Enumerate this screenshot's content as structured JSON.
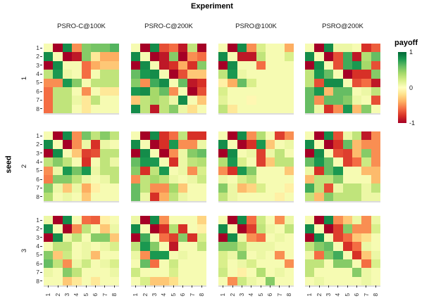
{
  "title": "Experiment",
  "legend": {
    "title": "payoff",
    "ticks": [
      "1",
      "0",
      "-1"
    ],
    "tick_values": [
      1,
      0,
      -1
    ]
  },
  "axes": {
    "x_tick_labels": [
      "1",
      "2",
      "3",
      "4",
      "5",
      "6",
      "7",
      "8"
    ],
    "y_tick_labels": [
      "1",
      "2",
      "3",
      "4",
      "5",
      "6",
      "7",
      "8"
    ],
    "row_axis_title": "seed"
  },
  "colors": {
    "background": "#ffffff",
    "scale_name": "RdYlGn",
    "scale_stops": [
      [
        -1.0,
        "#a50026"
      ],
      [
        -0.8,
        "#d73027"
      ],
      [
        -0.6,
        "#f46d43"
      ],
      [
        -0.4,
        "#fdae61"
      ],
      [
        -0.2,
        "#fee08b"
      ],
      [
        0.0,
        "#ffffbf"
      ],
      [
        0.2,
        "#d9ef8b"
      ],
      [
        0.4,
        "#a6d96a"
      ],
      [
        0.6,
        "#66bd63"
      ],
      [
        0.8,
        "#1a9850"
      ],
      [
        1.0,
        "#006837"
      ]
    ]
  },
  "chart_data": {
    "type": "heatmap",
    "title": "Experiment",
    "row_facet_label": "seed",
    "rows": [
      "1",
      "2",
      "3"
    ],
    "columns": [
      "PSRO-C@100K",
      "PSRO-C@200K",
      "PSRO@100K",
      "PSRO@200K"
    ],
    "x": [
      1,
      2,
      3,
      4,
      5,
      6,
      7,
      8
    ],
    "y": [
      1,
      2,
      3,
      4,
      5,
      6,
      7,
      8
    ],
    "value_label": "payoff",
    "value_range": [
      -1,
      1
    ],
    "legend_position": "right",
    "facets": [
      {
        "seed": "1",
        "experiment": "PSRO-C@100K",
        "values": [
          [
            0.05,
            -1,
            0.85,
            -0.5,
            0.5,
            0.55,
            0.55,
            0.65
          ],
          [
            0.85,
            0.05,
            -1,
            -0.9,
            0.5,
            -0.15,
            -0.4,
            -0.4
          ],
          [
            -1,
            0.85,
            0.05,
            0.05,
            -0.6,
            -0.4,
            -0.3,
            -0.3
          ],
          [
            0.3,
            0.8,
            0.1,
            0.05,
            -0.6,
            0.05,
            0.3,
            0.3
          ],
          [
            -0.5,
            -0.5,
            0.8,
            0.5,
            0.05,
            0.3,
            0.3,
            0.3
          ],
          [
            -0.6,
            0.3,
            0.3,
            0.05,
            -0.5,
            0.05,
            -0.15,
            -0.15
          ],
          [
            -0.6,
            0.3,
            0.3,
            0.1,
            -0.15,
            0.3,
            0.05,
            0.05
          ],
          [
            -0.6,
            0.3,
            0.3,
            0.05,
            -0.15,
            0.05,
            0.05,
            0.05
          ]
        ]
      },
      {
        "seed": "1",
        "experiment": "PSRO-C@200K",
        "values": [
          [
            0.05,
            -1,
            0.85,
            -0.7,
            -0.6,
            -0.9,
            0.3,
            -1
          ],
          [
            0.85,
            0.05,
            -1,
            -0.9,
            0.5,
            -1,
            -0.5,
            -0.6
          ],
          [
            -1,
            0.85,
            0.05,
            -0.9,
            -0.8,
            -0.4,
            -0.8,
            0.5
          ],
          [
            0.6,
            0.8,
            0.85,
            0.05,
            -1,
            -0.7,
            -0.3,
            -0.3
          ],
          [
            0.5,
            -0.5,
            0.7,
            0.85,
            0.05,
            0.6,
            -0.9,
            -0.8
          ],
          [
            0.8,
            0.85,
            0.4,
            0.6,
            -0.5,
            0.05,
            -1,
            -0.7
          ],
          [
            -0.3,
            0.3,
            0.4,
            0.3,
            0.1,
            0.85,
            0.05,
            -0.3
          ],
          [
            0.85,
            0.3,
            -0.9,
            0.3,
            0.5,
            0.1,
            -0.2,
            0.05
          ]
        ]
      },
      {
        "seed": "1",
        "experiment": "PSRO@100K",
        "values": [
          [
            0.05,
            -1,
            0.85,
            -0.5,
            0.2,
            0.05,
            0.05,
            -0.4
          ],
          [
            0.85,
            0.05,
            -0.9,
            -0.9,
            0.3,
            0.05,
            0.05,
            0.2
          ],
          [
            -1,
            0.85,
            0.05,
            0.05,
            -0.6,
            0.05,
            0.05,
            0.05
          ],
          [
            0.3,
            0.8,
            0.1,
            0.05,
            0.05,
            0.05,
            0.05,
            0.05
          ],
          [
            -0.1,
            -0.4,
            0.6,
            0.2,
            0.05,
            0.05,
            0.05,
            0.05
          ],
          [
            0.2,
            0.05,
            0.05,
            0.05,
            0.05,
            0.05,
            0.05,
            0.05
          ],
          [
            0.15,
            0.05,
            0.05,
            -0.05,
            0.05,
            0.05,
            0.05,
            0.05
          ],
          [
            0.3,
            -0.15,
            0.05,
            0.05,
            0.05,
            0.05,
            0.05,
            0.05
          ]
        ]
      },
      {
        "seed": "1",
        "experiment": "PSRO@200K",
        "values": [
          [
            0.05,
            -1,
            0.85,
            0.1,
            0.1,
            0.05,
            -0.8,
            -0.65
          ],
          [
            0.85,
            0.05,
            -1,
            -0.7,
            0.7,
            -0.9,
            0.35,
            0.6
          ],
          [
            -1,
            0.85,
            0.05,
            -0.7,
            0.7,
            0.8,
            0.4,
            -0.7
          ],
          [
            0.3,
            0.8,
            0.6,
            0.05,
            -1,
            -0.8,
            -0.8,
            0.5
          ],
          [
            0.3,
            -0.7,
            0.85,
            0.85,
            0.05,
            -0.7,
            -0.6,
            -0.9
          ],
          [
            0.6,
            0.8,
            -0.35,
            0.6,
            0.6,
            0.05,
            0.1,
            0.3
          ],
          [
            0.6,
            -0.5,
            0.6,
            0.6,
            0.5,
            0.1,
            0.05,
            -0.7
          ],
          [
            0.6,
            0.1,
            -0.8,
            -0.5,
            0.8,
            -0.35,
            0.5,
            0.05
          ]
        ]
      },
      {
        "seed": "2",
        "experiment": "PSRO-C@100K",
        "values": [
          [
            0.05,
            -1,
            0.85,
            -0.5,
            0.55,
            0.3,
            0.5,
            0.3
          ],
          [
            0.85,
            0.05,
            -1,
            -0.5,
            0.1,
            -0.8,
            0.1,
            0.05
          ],
          [
            -1,
            0.85,
            0.05,
            -0.3,
            -0.75,
            -0.7,
            0.3,
            0.3
          ],
          [
            0.3,
            0.5,
            0.3,
            0.05,
            -0.8,
            0.05,
            0.3,
            0.1
          ],
          [
            -0.5,
            0.1,
            0.8,
            0.55,
            0.8,
            0.1,
            0.3,
            0.3
          ],
          [
            -0.55,
            0.5,
            0.5,
            0.3,
            0.1,
            0.05,
            0.1,
            0.3
          ],
          [
            0.5,
            0.1,
            -0.3,
            0.1,
            -0.4,
            -0.1,
            0.05,
            0.05
          ],
          [
            0.35,
            0.05,
            0.1,
            0.05,
            -0.3,
            0.05,
            0.05,
            0.05
          ]
        ]
      },
      {
        "seed": "2",
        "experiment": "PSRO-C@200K",
        "values": [
          [
            0.05,
            -1,
            0.85,
            -0.8,
            -0.6,
            0.3,
            -0.8,
            -0.8
          ],
          [
            0.85,
            0.05,
            -1,
            -0.8,
            0.8,
            -0.5,
            -0.5,
            0.1
          ],
          [
            -1,
            0.85,
            0.05,
            -1,
            -0.5,
            0.1,
            0.5,
            0.6
          ],
          [
            0.6,
            0.8,
            0.8,
            0.05,
            -0.8,
            0.1,
            0.3,
            0.35
          ],
          [
            0.5,
            -0.8,
            0.3,
            0.8,
            0.05,
            0.1,
            -0.5,
            0.2
          ],
          [
            -0.5,
            0.3,
            0.4,
            0.3,
            0.1,
            0.05,
            0.1,
            0.25
          ],
          [
            0.6,
            0.3,
            -0.5,
            -0.5,
            0.4,
            -0.3,
            0.05,
            0.05
          ],
          [
            0.6,
            0.1,
            -0.8,
            -0.4,
            0.3,
            0.1,
            0.05,
            0.05
          ]
        ]
      },
      {
        "seed": "2",
        "experiment": "PSRO@100K",
        "values": [
          [
            0.05,
            -1,
            0.85,
            -0.5,
            0.35,
            0.05,
            -0.75,
            -0.5
          ],
          [
            0.85,
            0.05,
            -1,
            -0.8,
            0.8,
            -0.3,
            0.05,
            0.1
          ],
          [
            -1,
            0.85,
            0.05,
            0.1,
            -0.75,
            0.1,
            0.3,
            0.05
          ],
          [
            0.35,
            0.8,
            0.2,
            0.05,
            -0.75,
            -0.3,
            0.3,
            0.3
          ],
          [
            -0.5,
            -0.8,
            0.8,
            0.5,
            0.05,
            0.05,
            0.05,
            -0.3
          ],
          [
            0.1,
            0.05,
            0.2,
            0.3,
            0.05,
            0.05,
            0.05,
            0.05
          ],
          [
            0.5,
            0.1,
            -0.35,
            -0.25,
            0.2,
            0.05,
            0.05,
            -0.1
          ],
          [
            0.3,
            0.1,
            0.05,
            0.05,
            0.05,
            0.05,
            -0.1,
            0.05
          ]
        ]
      },
      {
        "seed": "2",
        "experiment": "PSRO@200K",
        "values": [
          [
            0.05,
            -1,
            0.85,
            -0.7,
            0.1,
            0.3,
            -0.9,
            -0.5
          ],
          [
            0.85,
            0.05,
            -1,
            -0.8,
            0.6,
            -0.35,
            -0.5,
            -0.5
          ],
          [
            -1,
            0.85,
            0.05,
            -0.7,
            -0.75,
            -0.35,
            0.5,
            -0.5
          ],
          [
            0.6,
            0.8,
            0.6,
            0.05,
            -0.75,
            -0.6,
            0.25,
            -0.5
          ],
          [
            0.1,
            -0.8,
            0.6,
            0.8,
            0.05,
            0.05,
            -0.35,
            -0.35
          ],
          [
            -0.35,
            0.3,
            0.3,
            0.5,
            0.05,
            0.05,
            0.05,
            -0.35
          ],
          [
            0.7,
            0.3,
            -0.7,
            0.1,
            0.3,
            0.3,
            0.1,
            0.3
          ],
          [
            0.3,
            -0.35,
            0.5,
            0.3,
            0.3,
            0.3,
            0.1,
            0.1
          ]
        ]
      },
      {
        "seed": "3",
        "experiment": "PSRO-C@100K",
        "values": [
          [
            0.1,
            -1,
            0.85,
            0.05,
            -0.6,
            -0.65,
            -0.1,
            0.05
          ],
          [
            0.85,
            0.05,
            -1,
            -0.5,
            0.3,
            0.05,
            -0.3,
            0.1
          ],
          [
            -1,
            0.85,
            0.1,
            0.3,
            0.05,
            0.5,
            0.5,
            -0.3
          ],
          [
            0.05,
            0.3,
            0.3,
            0.05,
            0.1,
            0.05,
            0.1,
            0.2
          ],
          [
            0.5,
            -0.3,
            0.25,
            0.05,
            0.1,
            -0.35,
            0.05,
            0.05
          ],
          [
            0.6,
            0.3,
            -0.5,
            0.1,
            0.25,
            0.05,
            0.1,
            0.2
          ],
          [
            0.1,
            0.05,
            0.5,
            0.3,
            0.05,
            0.05,
            0.05,
            0.1
          ],
          [
            0.05,
            0.05,
            -0.3,
            -0.15,
            0.05,
            -0.15,
            0.05,
            0.05
          ]
        ]
      },
      {
        "seed": "3",
        "experiment": "PSRO-C@200K",
        "values": [
          [
            0.1,
            -1,
            0.85,
            -0.5,
            0.05,
            0.05,
            0.05,
            -0.25
          ],
          [
            0.85,
            0.05,
            -1,
            -0.8,
            0.35,
            -0.8,
            0.05,
            -0.1
          ],
          [
            -1,
            0.7,
            0.05,
            -0.6,
            -0.75,
            0.5,
            -0.8,
            0.2
          ],
          [
            0.3,
            0.8,
            0.5,
            0.05,
            -0.9,
            0.05,
            0.05,
            0.3
          ],
          [
            0.1,
            -0.5,
            0.8,
            0.8,
            0.05,
            0.1,
            0.05,
            0.05
          ],
          [
            0.05,
            0.6,
            -0.6,
            0.05,
            0.25,
            0.05,
            0.05,
            0.05
          ],
          [
            0.25,
            0.05,
            0.05,
            0.05,
            0.2,
            0.05,
            0.05,
            0.05
          ],
          [
            0.05,
            0.2,
            -0.3,
            -0.3,
            -0.2,
            0.05,
            0.05,
            0.05
          ]
        ]
      },
      {
        "seed": "3",
        "experiment": "PSRO@100K",
        "values": [
          [
            0.05,
            -1,
            0.85,
            -0.6,
            0.25,
            0.05,
            -0.5,
            0.1
          ],
          [
            0.85,
            0.05,
            -1,
            -0.75,
            0.3,
            0.1,
            0.05,
            0.3
          ],
          [
            -1,
            0.85,
            0.1,
            -0.5,
            -0.6,
            0.05,
            0.1,
            0.05
          ],
          [
            0.5,
            0.5,
            0.3,
            0.1,
            0.1,
            0.1,
            0.05,
            0.05
          ],
          [
            0.2,
            0.1,
            0.5,
            0.05,
            0.1,
            0.05,
            -0.5,
            0.05
          ],
          [
            0.2,
            0.05,
            0.1,
            0.2,
            0.05,
            0.05,
            0.05,
            -0.5
          ],
          [
            0.25,
            0.05,
            -0.1,
            0.05,
            0.35,
            0.05,
            0.1,
            0.05
          ],
          [
            0.05,
            -0.5,
            0.25,
            0.1,
            0.05,
            0.5,
            0.05,
            0.05
          ]
        ]
      },
      {
        "seed": "3",
        "experiment": "PSRO@200K",
        "values": [
          [
            0.05,
            -1,
            0.85,
            -0.5,
            -0.3,
            0.1,
            -0.5,
            0.1
          ],
          [
            0.85,
            0.05,
            -1,
            -0.75,
            0.5,
            -0.5,
            -0.5,
            0.2
          ],
          [
            -1,
            0.85,
            0.05,
            -0.75,
            -0.6,
            -0.3,
            -0.2,
            0.05
          ],
          [
            0.3,
            0.5,
            0.6,
            0.05,
            -0.8,
            -0.6,
            0.1,
            0.05
          ],
          [
            0.1,
            -0.6,
            0.5,
            0.7,
            0.05,
            -0.8,
            -0.3,
            0.1
          ],
          [
            0.3,
            0.3,
            0.05,
            0.5,
            0.5,
            0.05,
            -0.6,
            0.2
          ],
          [
            0.3,
            0.05,
            0.05,
            0.05,
            0.05,
            0.5,
            0.1,
            0.05
          ],
          [
            0.05,
            0.1,
            0.05,
            0.05,
            0.05,
            0.05,
            0.1,
            0.05
          ]
        ]
      }
    ]
  }
}
